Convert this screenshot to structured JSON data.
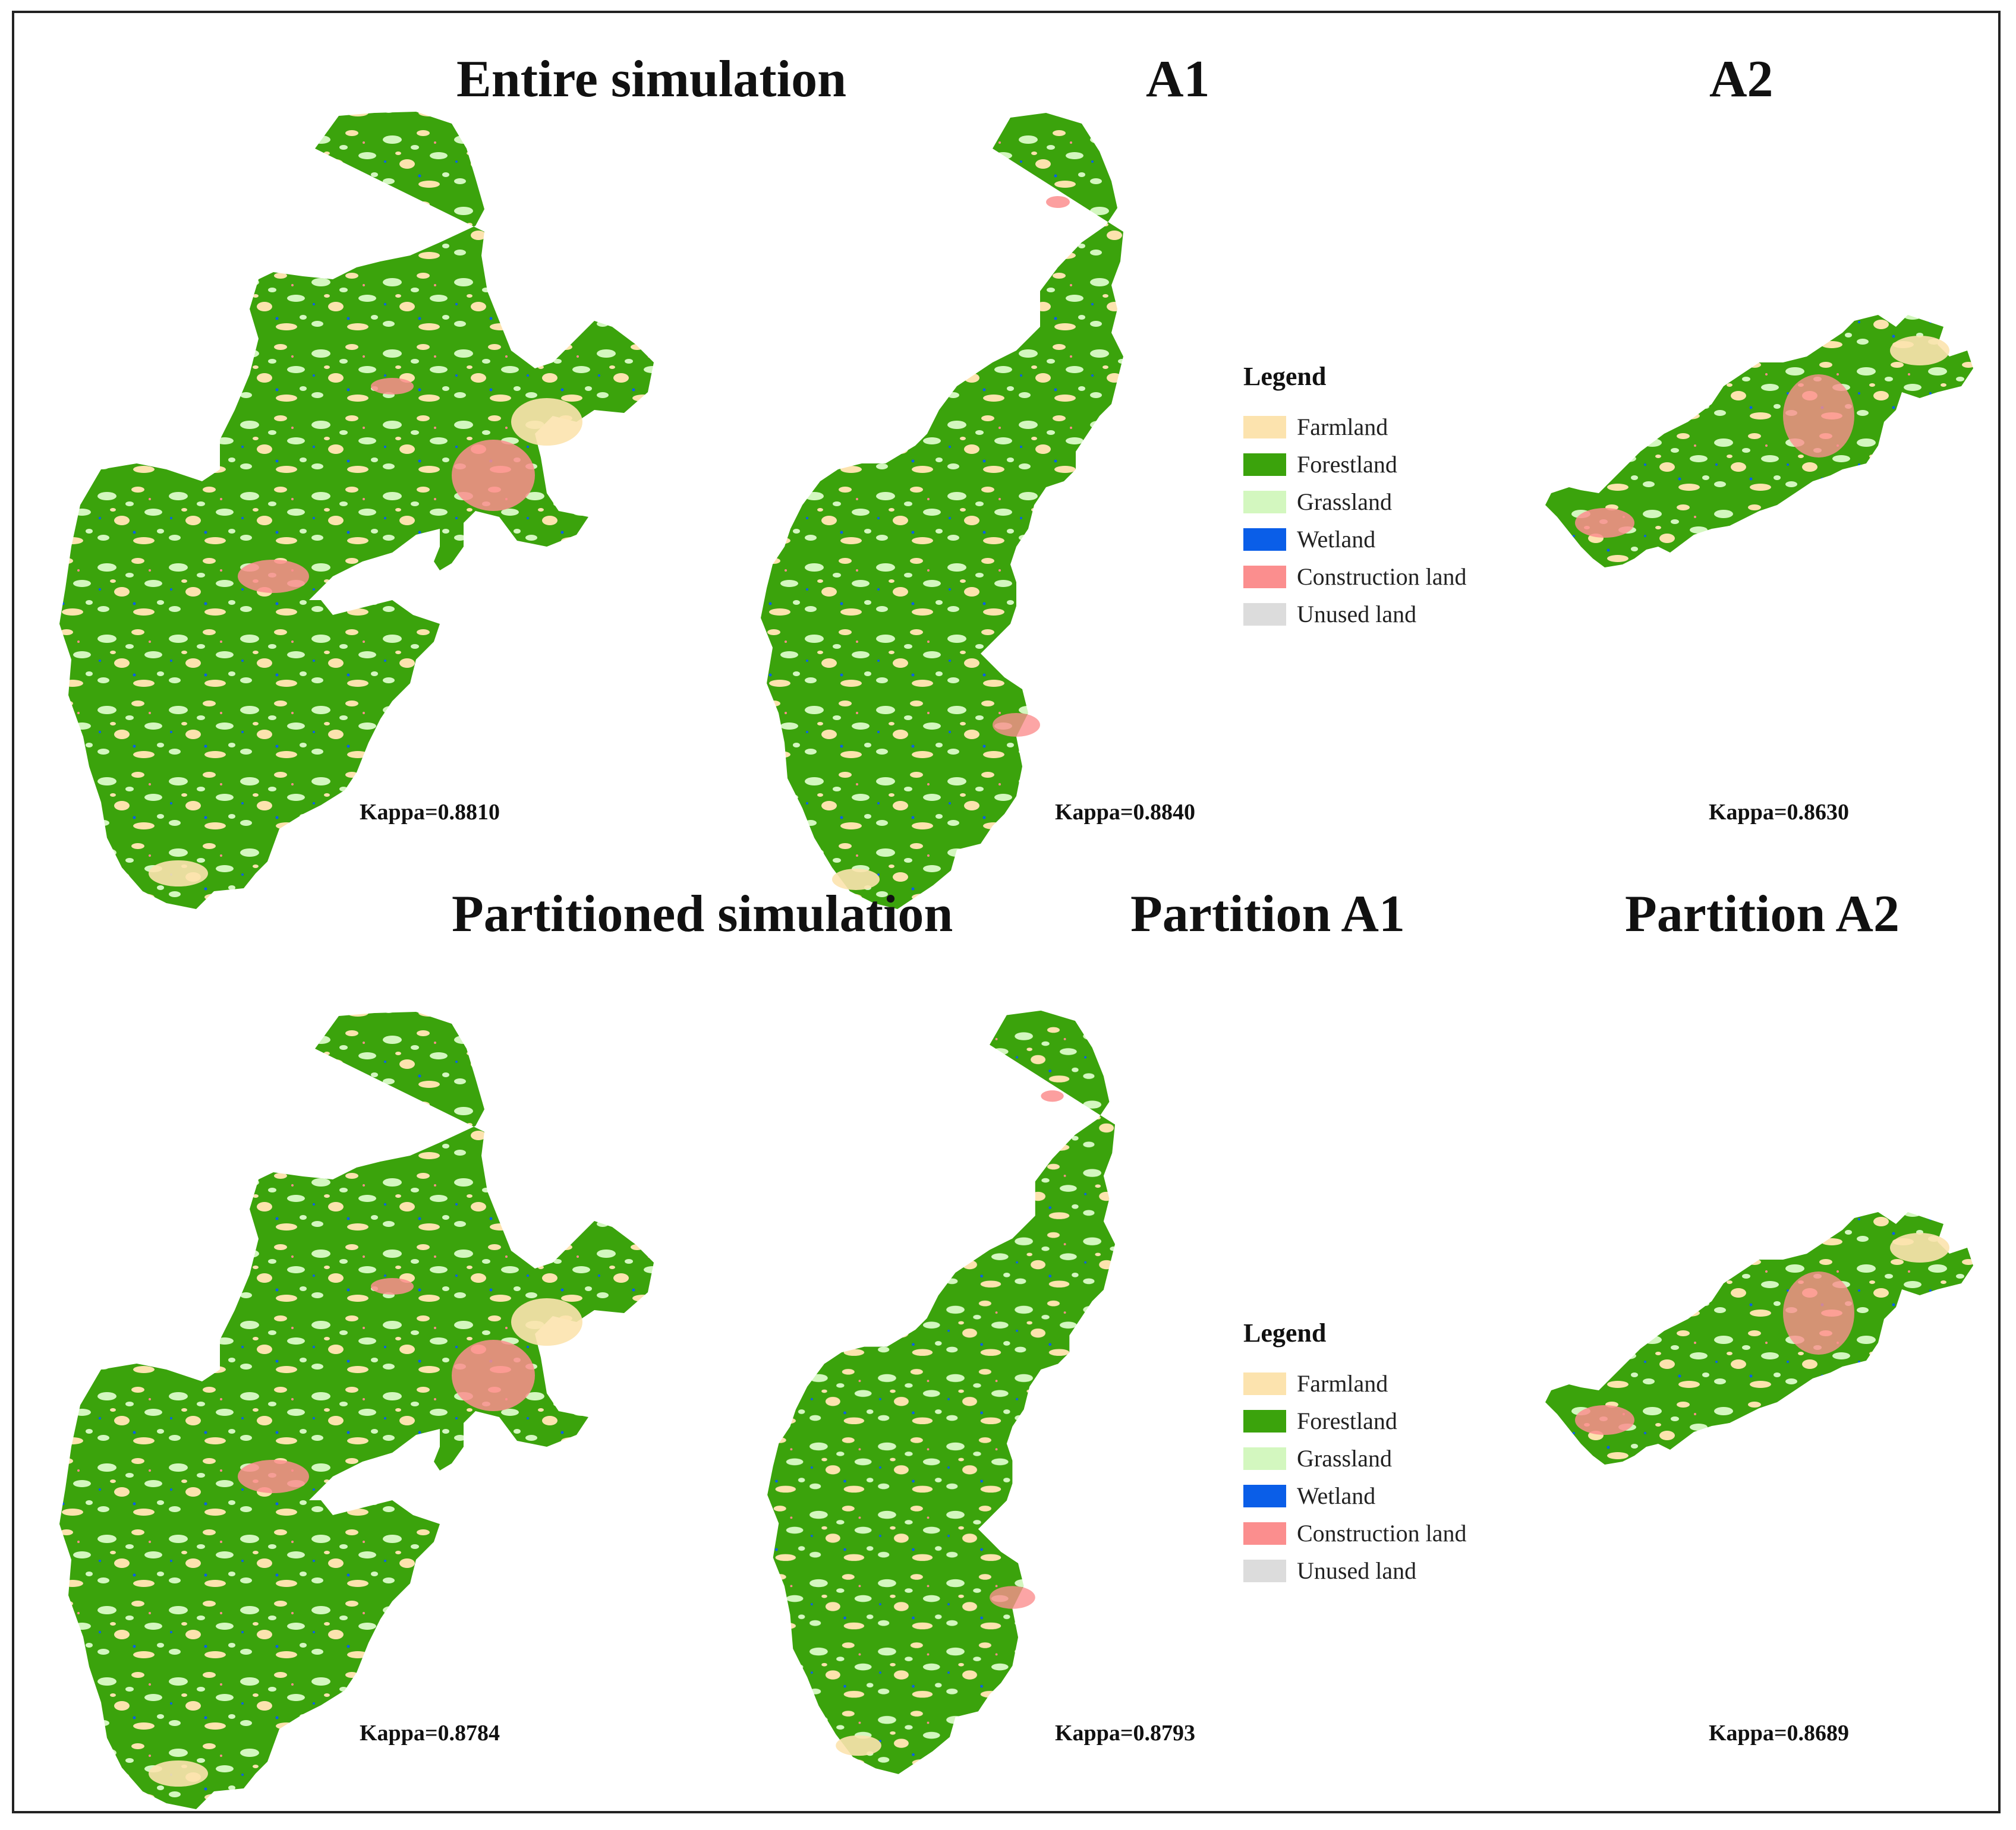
{
  "colors": {
    "farmland": "#FCE3AE",
    "forestland": "#3BA30C",
    "grassland": "#D3F7BF",
    "wetland": "#0A5EE8",
    "construction": "#FB8E8E",
    "unused": "#DCDCDC"
  },
  "panels": {
    "entire": {
      "title": "Entire simulation",
      "kappa": "Kappa=0.8810"
    },
    "a1": {
      "title": "A1",
      "kappa": "Kappa=0.8840"
    },
    "a2": {
      "title": "A2",
      "kappa": "Kappa=0.8630"
    },
    "partitioned": {
      "title": "Partitioned simulation",
      "kappa": "Kappa=0.8784"
    },
    "partition_a1": {
      "title": "Partition A1",
      "kappa": "Kappa=0.8793"
    },
    "partition_a2": {
      "title": "Partition A2",
      "kappa": "Kappa=0.8689"
    }
  },
  "legend": {
    "title": "Legend",
    "items": [
      {
        "label": "Farmland",
        "color_key": "farmland"
      },
      {
        "label": "Forestland",
        "color_key": "forestland"
      },
      {
        "label": "Grassland",
        "color_key": "grassland"
      },
      {
        "label": "Wetland",
        "color_key": "wetland"
      },
      {
        "label": "Construction land",
        "color_key": "construction"
      },
      {
        "label": "Unused land",
        "color_key": "unused"
      }
    ]
  }
}
